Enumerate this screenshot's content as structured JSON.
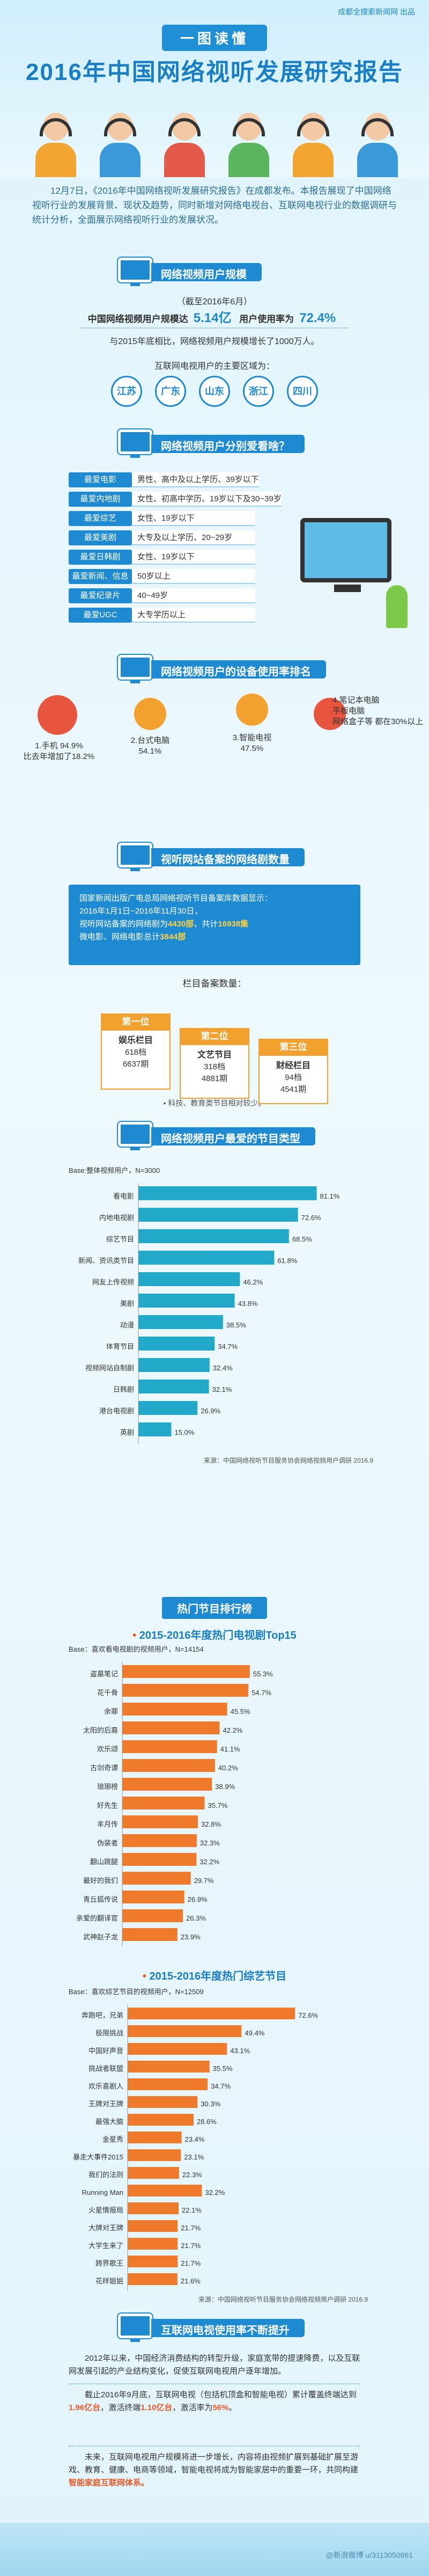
{
  "header": {
    "publisher": "成都全搜索新闻网 出品",
    "tag": "一图读懂",
    "title": "2016年中国网络视听发展研究报告"
  },
  "intro": "12月7日，《2016年中国网络视听发展研究报告》在成都发布。本报告展现了中国网络视听行业的发展背景、现状及趋势，同时新增对网络电视台、互联网电视行业的数据调研与统计分析，全面展示网络视听行业的发展状况。",
  "sections": {
    "users": "网络视频用户规模",
    "preference": "网络视频用户分别爱看啥？",
    "devices": "网络视频用户的设备使用率排名",
    "records": "视听网站备案的网络剧数量",
    "favorites": "网络视频用户最爱的节目类型",
    "rank": "热门节目排行榜",
    "growth": "互联网电视使用率不断提升"
  },
  "users": {
    "date": "（截至2016年6月）",
    "scale_label": "中国网络视频用户规模达",
    "scale_value": "5.14亿",
    "rate_label": "用户使用率为",
    "rate_value": "72.4%",
    "growth": "与2015年底相比，网络视频用户规模增长了1000万人。",
    "areas_title": "互联网电视用户的主要区域为：",
    "areas": [
      "江苏",
      "广东",
      "山东",
      "浙江",
      "四川"
    ]
  },
  "preferences": [
    {
      "label": "最爱电影",
      "desc": "男性、高中及以上学历、39岁以下",
      "color": "#1d8ad2"
    },
    {
      "label": "最爱内地剧",
      "desc": "女性、初高中学历、19岁以下及30~39岁",
      "color": "#1d8ad2"
    },
    {
      "label": "最爱综艺",
      "desc": "女性、19岁以下",
      "color": "#1d8ad2"
    },
    {
      "label": "最爱美剧",
      "desc": "大专及以上学历、20~29岁",
      "color": "#1d8ad2"
    },
    {
      "label": "最爱日韩剧",
      "desc": "女性、19岁以下",
      "color": "#1d8ad2"
    },
    {
      "label": "最爱新闻、信息资讯",
      "desc": "50岁以上",
      "color": "#1d8ad2"
    },
    {
      "label": "最爱纪录片",
      "desc": "40~49岁",
      "color": "#1d8ad2"
    },
    {
      "label": "最爱UGC",
      "desc": "大专学历以上",
      "color": "#1d8ad2"
    }
  ],
  "devices": [
    "1.手机 94.9%\n比去年增加了18.2%",
    "2.台式电脑\n54.1%",
    "3.智能电视\n47.5%",
    "4.笔记本电脑\n平板电脑\n网络盒子等 都在30%以上"
  ],
  "records": {
    "line1": "国家新闻出版广电总局网络视听节目备案库数据显示：",
    "line2": "2016年1月1日~2016年11月30日，",
    "line3a": "视听网站备案的网络剧为",
    "line3b": "4430部",
    "line3c": "，共计",
    "line3d": "16938集",
    "line4a": "微电影、网络电影总计",
    "line4b": "3844部",
    "column_title": "栏目备案数量：",
    "podium": [
      {
        "rank": "第一位",
        "name": "娱乐栏目",
        "count": "618档",
        "time": "6637期"
      },
      {
        "rank": "第二位",
        "name": "文艺节目",
        "count": "318档",
        "time": "4881期"
      },
      {
        "rank": "第三位",
        "name": "财经栏目",
        "count": "94档",
        "time": "4541期"
      }
    ],
    "note": "• 科技、教育类节目相对较少。"
  },
  "growth": {
    "p1": "2012年以来，中国经济消费结构的转型升级，家庭宽带的提速降费，以及互联网发展引起的产业结构变化，促使互联网电视用户逐年增加。",
    "p2a": "截止2016年9月底，互联网电视（包括机顶盒和智能电视）累计覆盖终端达到",
    "p2b": "1.96亿台",
    "p2c": "，激活终端",
    "p2d": "1.10亿台",
    "p2e": "，激活率为",
    "p2f": "56%",
    "p2g": "。",
    "p3a": "未来，互联网电视用户规模将进一步增长，内容将由视频扩展到基础扩展至游戏、教育、健康、电商等领域，智能电视将成为智能家居中的重要一环，共同构建",
    "p3b": "智能家庭互联网体系。"
  },
  "chart_data": [
    {
      "type": "bar",
      "title": "网络视频用户最爱的节目类型",
      "base": "Base:整体视频用户，N=3000",
      "source": "来源：中国网络视听节目服务协会网络视频用户调研 2016.9",
      "categories": [
        "看电影",
        "内地电视剧",
        "综艺节目",
        "新闻、资讯类节目",
        "网友上传视频",
        "美剧",
        "动漫",
        "体育节目",
        "视频网站自制剧",
        "日韩剧",
        "港台电视剧",
        "英剧"
      ],
      "values": [
        81.1,
        72.6,
        68.5,
        61.8,
        46.2,
        43.8,
        38.5,
        34.7,
        32.4,
        32.1,
        26.9,
        15.0
      ],
      "unit": "%",
      "color": "#22a8c9",
      "xlim": [
        0,
        100
      ]
    },
    {
      "type": "bar",
      "title": "2015-2016年度热门电视剧Top15",
      "base": "Base：喜欢看电视剧的视频用户，N=14154",
      "categories": [
        "盗墓笔记",
        "花千骨",
        "余罪",
        "太阳的后裔",
        "欢乐颂",
        "古剑奇谭",
        "琅琊榜",
        "好先生",
        "芈月传",
        "伪装者",
        "翻山跳腿",
        "最好的我们",
        "青丘狐传说",
        "亲爱的翻译官",
        "武神赵子龙"
      ],
      "values": [
        55.3,
        54.7,
        45.5,
        42.2,
        41.1,
        40.2,
        38.9,
        35.7,
        32.8,
        32.3,
        32.2,
        29.7,
        26.9,
        26.3,
        23.9
      ],
      "unit": "%",
      "color": "#ef7a2c",
      "xlim": [
        0,
        100
      ]
    },
    {
      "type": "bar",
      "title": "2015-2016年度热门综艺节目",
      "base": "Base：喜欢综艺节目的视频用户，N=12509",
      "source": "来源：中国网络视听节目服务协会网络视频用户调研 2016.9",
      "categories": [
        "奔跑吧，兄弟",
        "极限挑战",
        "中国好声音",
        "挑战者联盟",
        "欢乐喜剧人",
        "王牌对王牌",
        "最强大脑",
        "金星秀",
        "暴走大事件2015",
        "我们的法则",
        "Running Man",
        "火星情报局",
        "大牌对王牌",
        "大学生来了",
        "跨界歌王",
        "花样姐姐"
      ],
      "values": [
        72.6,
        49.4,
        43.1,
        35.5,
        34.7,
        30.3,
        28.6,
        23.4,
        23.1,
        22.3,
        32.2,
        22.1,
        21.7,
        21.7,
        21.7,
        21.6
      ],
      "unit": "%",
      "color": "#ef7a2c",
      "xlim": [
        0,
        100
      ]
    }
  ],
  "footer": {
    "watermark": "@新浪微博 u/3113050861"
  }
}
